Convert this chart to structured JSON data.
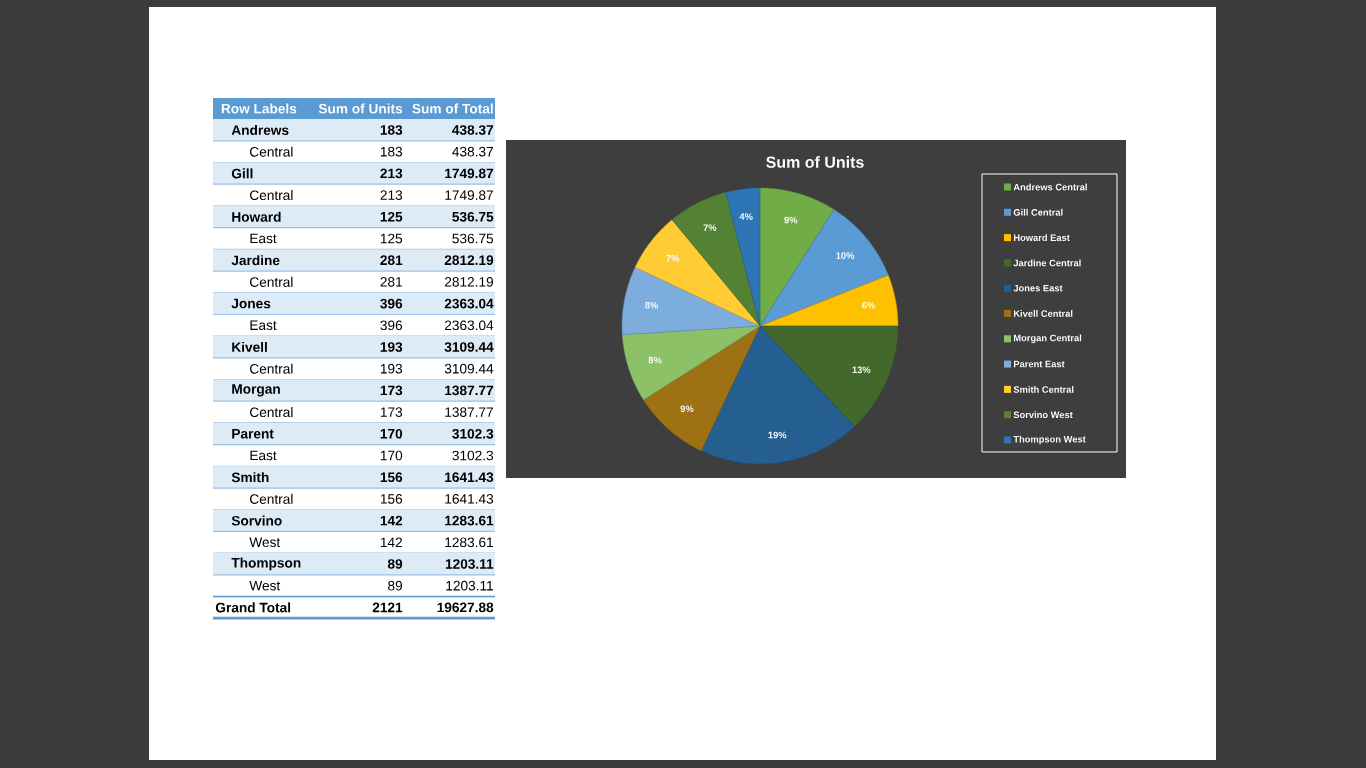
{
  "chart_data": [
    {
      "type": "other",
      "ylabel": "Row Labels",
      "categories": [
        "Andrews",
        "Central",
        "Gill",
        "Central",
        "Howard",
        "East",
        "Jardine",
        "Central",
        "Jones",
        "East",
        "Kivell",
        "Central",
        "Morgan",
        "Central",
        "Parent",
        "East",
        "Smith",
        "Central",
        "Sorvino",
        "West",
        "Thompson",
        "West",
        "Grand Total"
      ],
      "series": [
        {
          "name": "Sum of Units",
          "values": [
            183,
            183,
            213,
            213,
            125,
            125,
            281,
            281,
            396,
            396,
            193,
            193,
            173,
            173,
            170,
            170,
            156,
            156,
            142,
            142,
            89,
            89,
            2121
          ]
        },
        {
          "name": "Sum of Total",
          "values": [
            438.37,
            438.37,
            1749.87,
            1749.87,
            536.75,
            536.75,
            2812.19,
            2812.19,
            2363.04,
            2363.04,
            3109.44,
            3109.44,
            1387.77,
            1387.77,
            3102.3,
            3102.3,
            1641.43,
            1641.43,
            1283.61,
            1283.61,
            1203.11,
            1203.11,
            19627.88
          ]
        }
      ],
      "data_labels": true
    },
    {
      "type": "pie",
      "title": "Sum of Units",
      "categories": [
        "Andrews Central",
        "Gill Central",
        "Howard East",
        "Jardine Central",
        "Jones East",
        "Kivell Central",
        "Morgan Central",
        "Parent East",
        "Smith Central",
        "Sorvino West",
        "Thompson West"
      ],
      "values": [
        9,
        10,
        6,
        13,
        19,
        9,
        8,
        8,
        7,
        7,
        4
      ],
      "value_labels": [
        "9%",
        "10%",
        "6%",
        "13%",
        "19%",
        "9%",
        "8%",
        "8%",
        "7%",
        "7%",
        "4%"
      ],
      "colors": [
        "#70ad47",
        "#5b9bd5",
        "#ffc000",
        "#43682b",
        "#255e91",
        "#9e7114",
        "#8cc168",
        "#7caddd",
        "#ffcd33",
        "#548235",
        "#2e75b6"
      ],
      "legend": "right"
    }
  ]
}
